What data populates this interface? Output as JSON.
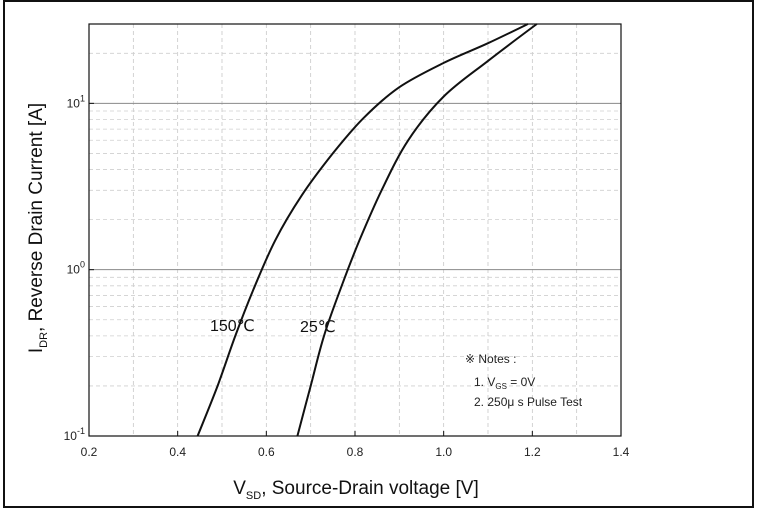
{
  "chart_data": {
    "type": "line",
    "title": "",
    "xlabel_main": "V",
    "xlabel_sub": "SD",
    "xlabel_rest": ", Source-Drain voltage [V]",
    "ylabel_main": "I",
    "ylabel_sub": "DR",
    "ylabel_rest": ", Reverse Drain Current [A]",
    "xlim": [
      0.2,
      1.4
    ],
    "ylim": [
      0.1,
      30
    ],
    "yscale": "log",
    "grid": true,
    "x_ticks": [
      0.2,
      0.4,
      0.6,
      0.8,
      1.0,
      1.2,
      1.4
    ],
    "x_tick_labels": [
      "0.2",
      "0.4",
      "0.6",
      "0.8",
      "1.0",
      "1.2",
      "1.4"
    ],
    "y_ticks": [
      {
        "base": "10",
        "exp": "-1",
        "value": 0.1
      },
      {
        "base": "10",
        "exp": "0",
        "value": 1
      },
      {
        "base": "10",
        "exp": "1",
        "value": 10
      }
    ],
    "series": [
      {
        "name": "150℃",
        "x": [
          0.445,
          0.49,
          0.53,
          0.57,
          0.62,
          0.68,
          0.75,
          0.82,
          0.9,
          1.0,
          1.1,
          1.19
        ],
        "y": [
          0.1,
          0.2,
          0.4,
          0.75,
          1.5,
          2.8,
          5.0,
          8.2,
          12.5,
          17.5,
          23.0,
          30.0
        ]
      },
      {
        "name": "25℃",
        "x": [
          0.67,
          0.7,
          0.73,
          0.77,
          0.81,
          0.86,
          0.92,
          1.0,
          1.1,
          1.21
        ],
        "y": [
          0.1,
          0.2,
          0.4,
          0.8,
          1.5,
          3.0,
          6.0,
          11.0,
          18.0,
          30.0
        ]
      }
    ],
    "curve_labels": [
      "150℃",
      "25℃"
    ],
    "notes": {
      "title": "※ Notes :",
      "line1_prefix": "1. V",
      "line1_sub": "GS",
      "line1_rest": " = 0V",
      "line2": "2. 250μ s Pulse Test"
    }
  }
}
